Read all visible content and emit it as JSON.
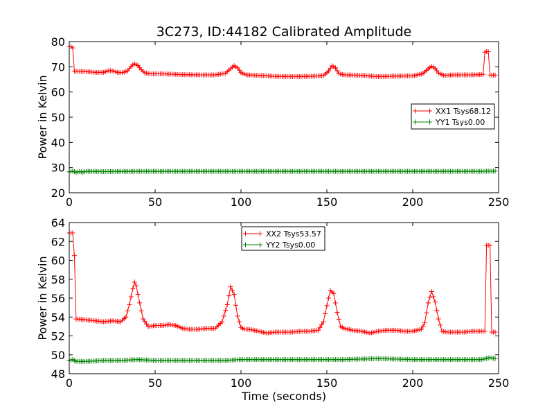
{
  "chart_data": [
    {
      "type": "line",
      "title": "3C273, ID:44182 Calibrated Amplitude",
      "xlabel": "",
      "ylabel": "Power in Kelvin",
      "xlim": [
        0,
        250
      ],
      "ylim": [
        20,
        80
      ],
      "xticks": [
        0,
        50,
        100,
        150,
        200,
        250
      ],
      "yticks": [
        20,
        30,
        40,
        50,
        60,
        70,
        80
      ],
      "grid": false,
      "legend_position": "right",
      "series": [
        {
          "name": "XX1 Tsys68.12",
          "color": "#ff0000",
          "marker": "+",
          "x": [
            0,
            1,
            2,
            3,
            5,
            10,
            15,
            20,
            23,
            25,
            28,
            31,
            34,
            36,
            38,
            40,
            42,
            44,
            47,
            55,
            65,
            75,
            85,
            91,
            94,
            96,
            98,
            100,
            103,
            110,
            120,
            130,
            140,
            148,
            151,
            153,
            155,
            157,
            160,
            170,
            180,
            190,
            200,
            206,
            209,
            211,
            213,
            215,
            218,
            225,
            235,
            240,
            241,
            242,
            243,
            244,
            245,
            246,
            247,
            248
          ],
          "y": [
            78,
            78,
            77.5,
            68.3,
            68.2,
            68.1,
            67.8,
            67.8,
            68.5,
            68.4,
            67.8,
            67.7,
            68.4,
            70.2,
            71.2,
            70.5,
            68.8,
            67.6,
            67.2,
            67.2,
            66.9,
            66.8,
            66.8,
            67.4,
            69.3,
            70.4,
            69.6,
            67.7,
            66.8,
            66.6,
            66.2,
            66.1,
            66.2,
            66.5,
            68.3,
            70.4,
            69.6,
            67.3,
            66.8,
            66.6,
            66.1,
            66.3,
            66.4,
            67.3,
            69.2,
            70.2,
            69.4,
            67.5,
            66.6,
            66.8,
            66.8,
            66.9,
            67.0,
            75.8,
            76.0,
            76.0,
            66.7,
            66.7,
            66.7,
            66.7
          ]
        },
        {
          "name": "YY1 Tsys0.00",
          "color": "#008000",
          "marker": "+",
          "x": [
            0,
            2,
            4,
            6,
            8,
            10,
            20,
            40,
            60,
            80,
            100,
            120,
            140,
            160,
            180,
            200,
            220,
            240,
            248
          ],
          "y": [
            28.3,
            28.6,
            28.1,
            28.4,
            28.2,
            28.5,
            28.4,
            28.5,
            28.5,
            28.5,
            28.5,
            28.5,
            28.5,
            28.5,
            28.5,
            28.5,
            28.5,
            28.5,
            28.6
          ]
        }
      ]
    },
    {
      "type": "line",
      "title": "",
      "xlabel": "Time (seconds)",
      "ylabel": "Power in Kelvin",
      "xlim": [
        0,
        250
      ],
      "ylim": [
        48,
        64
      ],
      "xticks": [
        0,
        50,
        100,
        150,
        200,
        250
      ],
      "yticks": [
        48,
        50,
        52,
        54,
        56,
        58,
        60,
        62,
        64
      ],
      "grid": false,
      "legend_position": "top-center",
      "series": [
        {
          "name": "XX2 Tsys53.57",
          "color": "#ff0000",
          "marker": "+",
          "x": [
            0,
            1,
            2,
            3,
            4,
            10,
            15,
            20,
            25,
            30,
            33,
            35,
            37,
            38,
            39,
            41,
            43,
            46,
            50,
            55,
            58,
            62,
            66,
            70,
            75,
            80,
            85,
            89,
            92,
            94,
            96,
            98,
            100,
            102,
            105,
            110,
            115,
            120,
            125,
            130,
            135,
            140,
            145,
            148,
            150,
            152,
            154,
            156,
            158,
            160,
            165,
            170,
            175,
            180,
            185,
            190,
            195,
            200,
            205,
            207,
            209,
            211,
            213,
            215,
            217,
            220,
            225,
            230,
            235,
            240,
            242,
            243,
            244,
            245,
            246,
            247,
            248
          ],
          "y": [
            62.9,
            62.9,
            62.9,
            60.5,
            53.8,
            53.7,
            53.6,
            53.5,
            53.6,
            53.5,
            54,
            55.3,
            57,
            57.7,
            57.3,
            55.5,
            53.8,
            53.0,
            53.1,
            53.1,
            53.2,
            53.1,
            52.8,
            52.7,
            52.7,
            52.8,
            52.8,
            53.5,
            55.3,
            57.2,
            56.4,
            54.1,
            52.9,
            52.7,
            52.7,
            52.5,
            52.3,
            52.4,
            52.4,
            52.4,
            52.5,
            52.5,
            52.6,
            53.5,
            55.2,
            56.8,
            56.5,
            54.5,
            53.0,
            52.8,
            52.6,
            52.5,
            52.3,
            52.5,
            52.6,
            52.6,
            52.5,
            52.5,
            52.7,
            53.4,
            55.5,
            56.7,
            55.6,
            53.8,
            52.5,
            52.4,
            52.4,
            52.4,
            52.5,
            52.5,
            52.5,
            61.6,
            61.6,
            61.6,
            52.4,
            52.4,
            52.4
          ]
        },
        {
          "name": "YY2 Tsys0.00",
          "color": "#008000",
          "marker": "+",
          "x": [
            0,
            2,
            4,
            6,
            10,
            20,
            30,
            40,
            50,
            60,
            70,
            80,
            90,
            100,
            120,
            140,
            160,
            180,
            200,
            220,
            240,
            245,
            248
          ],
          "y": [
            49.4,
            49.5,
            49.3,
            49.3,
            49.3,
            49.4,
            49.4,
            49.5,
            49.4,
            49.4,
            49.4,
            49.4,
            49.4,
            49.5,
            49.5,
            49.5,
            49.5,
            49.6,
            49.5,
            49.5,
            49.5,
            49.7,
            49.6
          ]
        }
      ]
    }
  ]
}
